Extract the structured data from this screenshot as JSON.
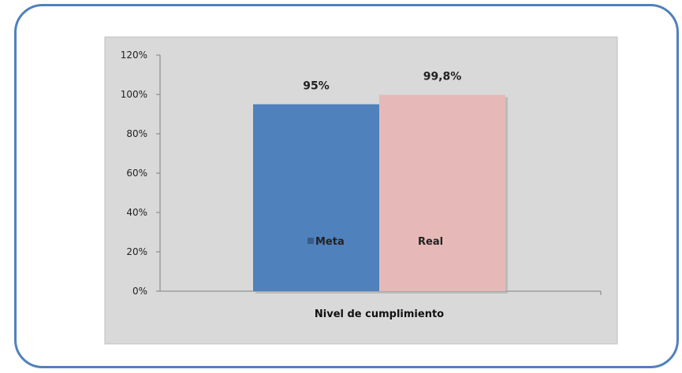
{
  "chart_data": {
    "type": "bar",
    "categories": [
      "Nivel de cumplimiento"
    ],
    "series": [
      {
        "name": "Meta",
        "values": [
          95
        ],
        "data_label": "95%",
        "color": "#4f81bd"
      },
      {
        "name": "Real",
        "values": [
          99.8
        ],
        "data_label": "99,8%",
        "color": "#e6b9b8"
      }
    ],
    "ylim": [
      0,
      120
    ],
    "yticks": [
      {
        "value": 0,
        "label": "0%"
      },
      {
        "value": 20,
        "label": "20%"
      },
      {
        "value": 40,
        "label": "40%"
      },
      {
        "value": 60,
        "label": "60%"
      },
      {
        "value": 80,
        "label": "80%"
      },
      {
        "value": 100,
        "label": "100%"
      },
      {
        "value": 120,
        "label": "120%"
      }
    ],
    "legend_placement": "inside-bars",
    "grid": false,
    "plot_background": "#d9d9d9"
  }
}
